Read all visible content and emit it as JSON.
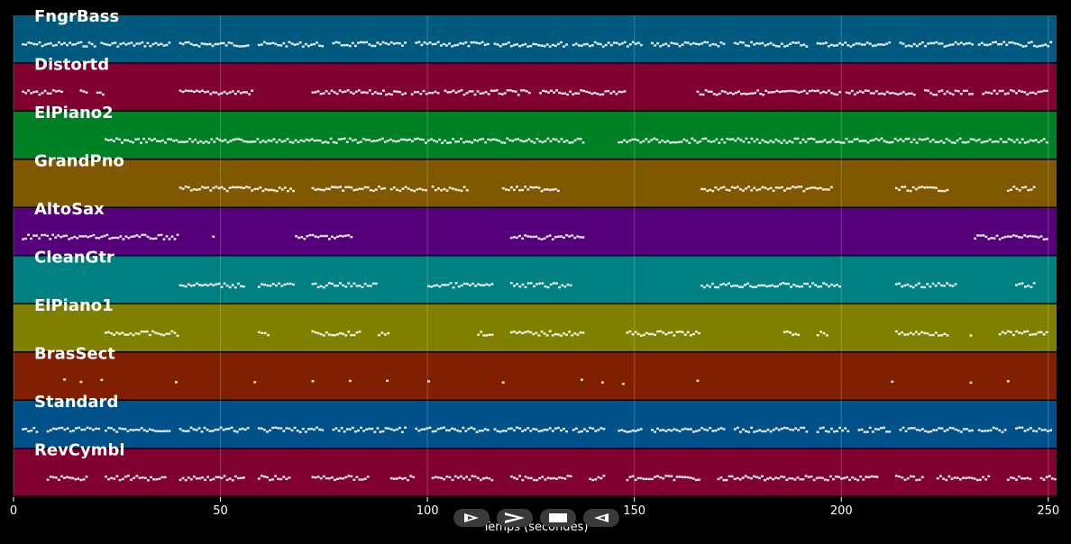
{
  "player": {
    "controls": [
      {
        "name": "play-button",
        "label": "Play",
        "icon": "play-outline-icon"
      },
      {
        "name": "fast-forward-button",
        "label": "Forward",
        "icon": "chevron-right-icon"
      },
      {
        "name": "stop-button",
        "label": "Stop",
        "icon": "stop-icon"
      },
      {
        "name": "rewind-button",
        "label": "Back",
        "icon": "play-reverse-outline-icon"
      }
    ]
  },
  "chart_data": {
    "type": "piano-roll",
    "xlabel": "Temps (secondes)",
    "xlim": [
      0,
      252
    ],
    "xticks": [
      0,
      50,
      100,
      150,
      200,
      250
    ],
    "grid": true,
    "note_color": "#ffffff",
    "tracks": [
      {
        "name": "FngrBass",
        "color": "#005a80",
        "segments": [
          [
            2,
            20
          ],
          [
            21,
            38
          ],
          [
            40,
            57
          ],
          [
            59,
            75
          ],
          [
            77,
            95
          ],
          [
            97,
            115
          ],
          [
            116,
            134
          ],
          [
            135,
            152
          ],
          [
            154,
            172
          ],
          [
            174,
            192
          ],
          [
            194,
            212
          ],
          [
            214,
            232
          ],
          [
            233,
            251
          ]
        ]
      },
      {
        "name": "Distortd",
        "color": "#800030",
        "segments": [
          [
            2,
            12
          ],
          [
            16,
            18
          ],
          [
            20,
            22
          ],
          [
            40,
            58
          ],
          [
            72,
            95
          ],
          [
            96,
            103
          ],
          [
            104,
            125
          ],
          [
            127,
            148
          ],
          [
            165,
            200
          ],
          [
            201,
            218
          ],
          [
            220,
            232
          ],
          [
            234,
            250
          ]
        ]
      },
      {
        "name": "ElPiano2",
        "color": "#008025",
        "segments": [
          [
            22,
            138
          ],
          [
            146,
            250
          ]
        ]
      },
      {
        "name": "GrandPno",
        "color": "#805800",
        "segments": [
          [
            40,
            68
          ],
          [
            72,
            90
          ],
          [
            91,
            100
          ],
          [
            101,
            110
          ],
          [
            118,
            132
          ],
          [
            166,
            198
          ],
          [
            213,
            226
          ],
          [
            240,
            247
          ]
        ]
      },
      {
        "name": "AltoSax",
        "color": "#55007a",
        "segments": [
          [
            2,
            40
          ],
          [
            48,
            49
          ],
          [
            68,
            82
          ],
          [
            120,
            138
          ],
          [
            232,
            250
          ]
        ]
      },
      {
        "name": "CleanGtr",
        "color": "#008080",
        "segments": [
          [
            40,
            56
          ],
          [
            59,
            68
          ],
          [
            72,
            88
          ],
          [
            100,
            116
          ],
          [
            120,
            135
          ],
          [
            166,
            200
          ],
          [
            213,
            228
          ],
          [
            242,
            247
          ]
        ]
      },
      {
        "name": "ElPiano1",
        "color": "#808000",
        "segments": [
          [
            22,
            40
          ],
          [
            59,
            62
          ],
          [
            72,
            84
          ],
          [
            88,
            91
          ],
          [
            112,
            116
          ],
          [
            120,
            138
          ],
          [
            148,
            166
          ],
          [
            186,
            190
          ],
          [
            194,
            197
          ],
          [
            213,
            226
          ],
          [
            231,
            232
          ],
          [
            238,
            250
          ]
        ]
      },
      {
        "name": "BrasSect",
        "color": "#802000",
        "segments": [
          [
            12,
            13
          ],
          [
            16,
            17
          ],
          [
            21,
            22
          ],
          [
            39,
            40
          ],
          [
            58,
            59
          ],
          [
            72,
            73
          ],
          [
            81,
            82
          ],
          [
            90,
            91
          ],
          [
            100,
            101
          ],
          [
            118,
            119
          ],
          [
            137,
            138
          ],
          [
            142,
            143
          ],
          [
            147,
            148
          ],
          [
            165,
            166
          ],
          [
            212,
            213
          ],
          [
            231,
            232
          ],
          [
            240,
            241
          ]
        ]
      },
      {
        "name": "Standard",
        "color": "#00508a",
        "segments": [
          [
            2,
            6
          ],
          [
            8,
            21
          ],
          [
            22,
            38
          ],
          [
            40,
            57
          ],
          [
            59,
            75
          ],
          [
            77,
            95
          ],
          [
            97,
            115
          ],
          [
            116,
            134
          ],
          [
            135,
            143
          ],
          [
            146,
            152
          ],
          [
            154,
            172
          ],
          [
            174,
            192
          ],
          [
            194,
            202
          ],
          [
            204,
            212
          ],
          [
            214,
            232
          ],
          [
            233,
            240
          ],
          [
            242,
            251
          ]
        ]
      },
      {
        "name": "RevCymbl",
        "color": "#800030",
        "segments": [
          [
            8,
            18
          ],
          [
            22,
            37
          ],
          [
            40,
            56
          ],
          [
            59,
            67
          ],
          [
            72,
            86
          ],
          [
            91,
            97
          ],
          [
            101,
            116
          ],
          [
            120,
            135
          ],
          [
            139,
            143
          ],
          [
            148,
            166
          ],
          [
            170,
            209
          ],
          [
            213,
            220
          ],
          [
            223,
            236
          ],
          [
            240,
            246
          ],
          [
            248,
            252
          ]
        ]
      }
    ]
  }
}
